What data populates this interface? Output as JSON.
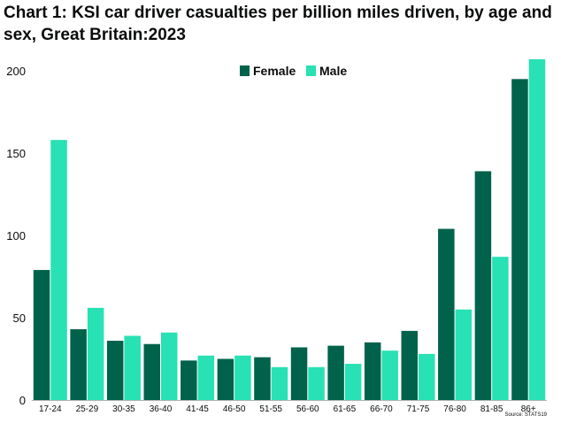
{
  "chart_data": {
    "type": "bar",
    "title": "Chart 1: KSI car driver casualties per billion miles driven, by age and sex, Great Britain:2023",
    "categories": [
      "17-24",
      "25-29",
      "30-35",
      "36-40",
      "41-45",
      "46-50",
      "51-55",
      "56-60",
      "61-65",
      "66-70",
      "71-75",
      "76-80",
      "81-85",
      "86+"
    ],
    "series": [
      {
        "name": "Female",
        "color": "#00624b",
        "values": [
          79,
          43,
          36,
          34,
          24,
          25,
          26,
          32,
          33,
          35,
          42,
          104,
          139,
          195
        ]
      },
      {
        "name": "Male",
        "color": "#28e1b4",
        "values": [
          158,
          56,
          39,
          41,
          27,
          27,
          20,
          20,
          22,
          30,
          28,
          55,
          87,
          207
        ]
      }
    ],
    "yticks": [
      0,
      50,
      100,
      150,
      200
    ],
    "ylim": [
      0,
      207
    ],
    "legend_position": "top-center",
    "grid": false,
    "source": "Source: STATS19"
  }
}
